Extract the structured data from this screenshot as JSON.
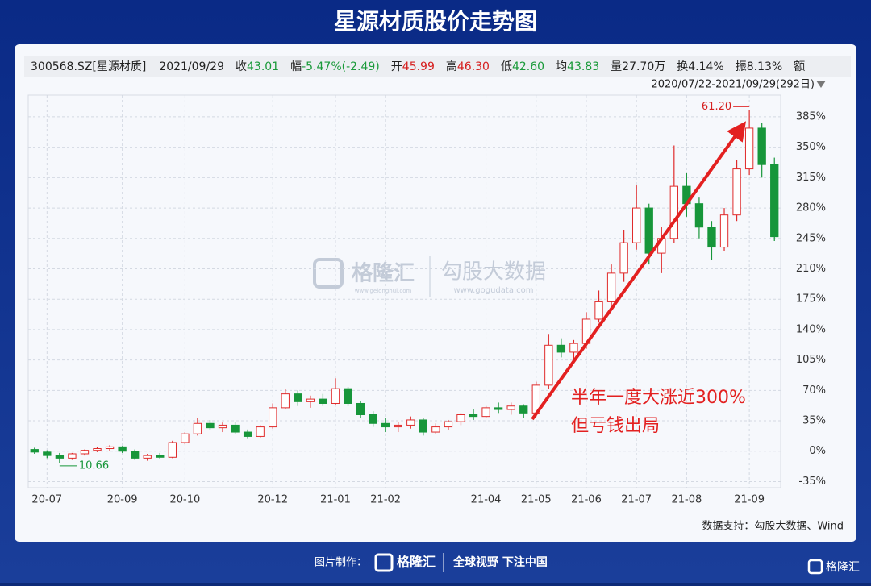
{
  "title": "星源材质股价走势图",
  "info": {
    "code": "300568.SZ[星源材质]",
    "date": "2021/09/29",
    "items": [
      {
        "label": "收",
        "value": "43.01",
        "color": "#1a9a3a"
      },
      {
        "label": "幅",
        "value": "-5.47%(-2.49)",
        "color": "#1a9a3a"
      },
      {
        "label": "开",
        "value": "45.99",
        "color": "#d62020"
      },
      {
        "label": "高",
        "value": "46.30",
        "color": "#d62020"
      },
      {
        "label": "低",
        "value": "42.60",
        "color": "#1a9a3a"
      },
      {
        "label": "均",
        "value": "43.83",
        "color": "#1a9a3a"
      },
      {
        "label": "量",
        "value": "27.70万",
        "color": "#222222"
      },
      {
        "label": "换",
        "value": "4.14%",
        "color": "#222222"
      },
      {
        "label": "振",
        "value": "8.13%",
        "color": "#222222"
      },
      {
        "label": "额",
        "value": "",
        "color": "#222222"
      }
    ],
    "range": "2020/07/22-2021/09/29(292日)"
  },
  "chart_data": {
    "type": "candlestick",
    "open": [
      2,
      -1,
      -5,
      -8,
      -3,
      1,
      3,
      5,
      0,
      -8,
      -5,
      -7,
      10,
      20,
      32,
      27,
      30,
      22,
      17,
      28,
      50,
      66,
      57,
      60,
      55,
      72,
      55,
      42,
      32,
      28,
      30,
      36,
      22,
      28,
      34,
      42,
      40,
      50,
      48,
      52,
      44,
      76,
      122,
      114,
      124,
      152,
      172,
      205,
      240,
      280,
      228,
      245,
      305,
      285,
      258,
      235,
      272,
      325,
      372,
      330
    ],
    "high": [
      4,
      1,
      -2,
      -2,
      2,
      5,
      7,
      6,
      2,
      -3,
      -2,
      12,
      22,
      38,
      36,
      33,
      34,
      25,
      30,
      55,
      72,
      70,
      64,
      66,
      84,
      74,
      58,
      46,
      38,
      34,
      40,
      38,
      32,
      36,
      44,
      48,
      52,
      56,
      56,
      54,
      80,
      135,
      130,
      128,
      160,
      185,
      215,
      255,
      306,
      285,
      258,
      352,
      320,
      292,
      265,
      280,
      335,
      393,
      378,
      338
    ],
    "low": [
      -3,
      -8,
      -14,
      -10,
      -5,
      -1,
      0,
      -2,
      -10,
      -11,
      -9,
      -8,
      8,
      18,
      24,
      22,
      20,
      14,
      15,
      26,
      48,
      52,
      50,
      52,
      53,
      52,
      38,
      28,
      22,
      22,
      26,
      18,
      20,
      24,
      30,
      36,
      38,
      44,
      42,
      38,
      40,
      72,
      108,
      104,
      118,
      148,
      168,
      195,
      232,
      215,
      205,
      240,
      270,
      245,
      220,
      230,
      265,
      318,
      315,
      242
    ],
    "close": [
      -1,
      -5,
      -8,
      -3,
      1,
      3,
      5,
      0,
      -8,
      -5,
      -7,
      10,
      20,
      32,
      27,
      30,
      22,
      17,
      28,
      50,
      66,
      57,
      60,
      55,
      72,
      55,
      42,
      32,
      28,
      30,
      36,
      22,
      28,
      34,
      42,
      40,
      50,
      48,
      52,
      44,
      76,
      122,
      114,
      124,
      152,
      172,
      205,
      240,
      280,
      228,
      245,
      305,
      285,
      258,
      235,
      272,
      325,
      372,
      330,
      247
    ],
    "up_color": "#e02b2b",
    "down_color": "#17963a",
    "ylim": [
      -42,
      410
    ],
    "yticks": [
      {
        "value": -35,
        "label": "-35%"
      },
      {
        "value": 0,
        "label": "0%"
      },
      {
        "value": 35,
        "label": "35%"
      },
      {
        "value": 70,
        "label": "70%"
      },
      {
        "value": 105,
        "label": "105%"
      },
      {
        "value": 140,
        "label": "140%"
      },
      {
        "value": 175,
        "label": "175%"
      },
      {
        "value": 210,
        "label": "210%"
      },
      {
        "value": 245,
        "label": "245%"
      },
      {
        "value": 280,
        "label": "280%"
      },
      {
        "value": 315,
        "label": "315%"
      },
      {
        "value": 350,
        "label": "350%"
      },
      {
        "value": 385,
        "label": "385%"
      }
    ],
    "xticks": [
      {
        "value": 1,
        "label": "20-07"
      },
      {
        "value": 7,
        "label": "20-09"
      },
      {
        "value": 12,
        "label": "20-10"
      },
      {
        "value": 19,
        "label": "20-12"
      },
      {
        "value": 24,
        "label": "21-01"
      },
      {
        "value": 28,
        "label": "21-02"
      },
      {
        "value": 36,
        "label": "21-04"
      },
      {
        "value": 40,
        "label": "21-05"
      },
      {
        "value": 44,
        "label": "21-06"
      },
      {
        "value": 48,
        "label": "21-07"
      },
      {
        "value": 52,
        "label": "21-08"
      },
      {
        "value": 57,
        "label": "21-09"
      }
    ],
    "grid": true,
    "max_label": "61.20",
    "min_label": "10.66",
    "annotation": [
      "半年一度大涨近300%",
      "但亏钱出局"
    ],
    "source": "数据支持：勾股大数据、Wind"
  },
  "watermark": {
    "brand": "格隆汇",
    "brand_url": "www.gelonghui.com",
    "data": "勾股大数据",
    "data_url": "www.gogudata.com"
  },
  "footer": {
    "made_by": "图片制作：",
    "brand": "格隆汇",
    "slogan": "全球视野 下注中国",
    "corner": "格隆汇"
  }
}
